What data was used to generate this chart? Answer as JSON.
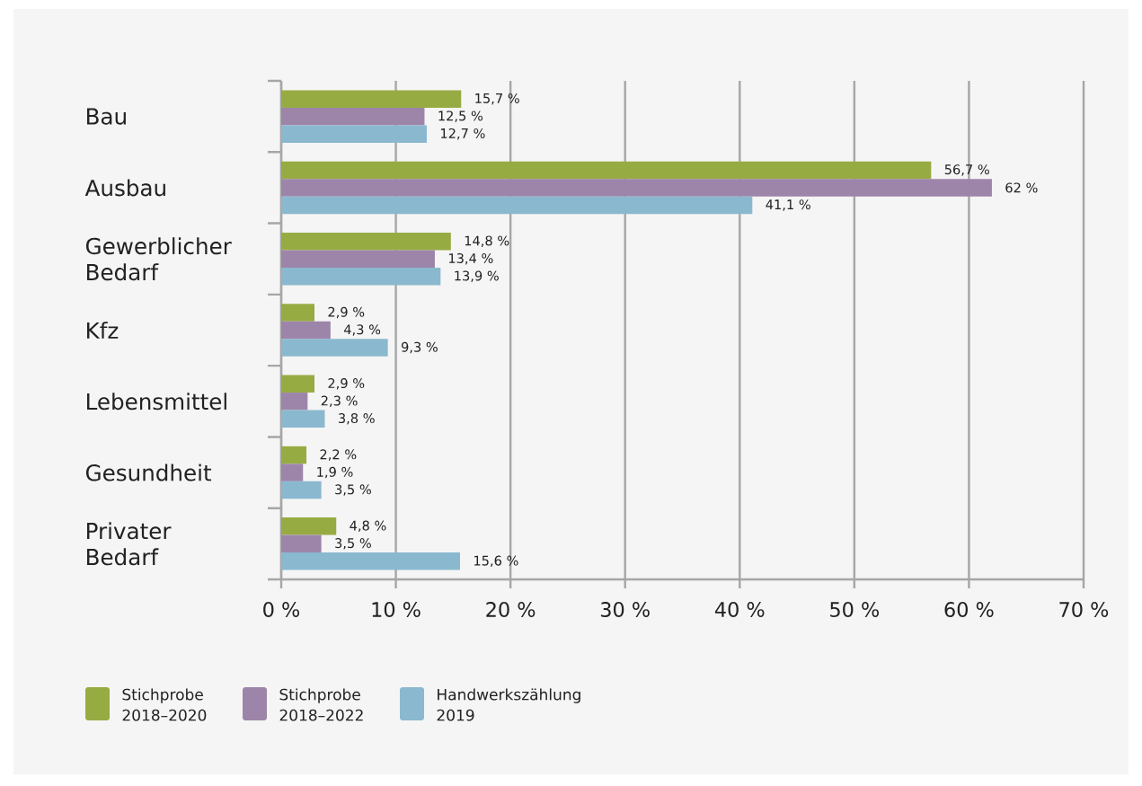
{
  "chart_data": {
    "type": "bar",
    "orientation": "horizontal",
    "categories": [
      "Bau",
      "Ausbau",
      "Gewerblicher Bedarf",
      "Kfz",
      "Lebensmittel",
      "Gesundheit",
      "Privater Bedarf"
    ],
    "series": [
      {
        "name": "Stichprobe 2018–2020",
        "color": "#97ab43",
        "values": [
          15.7,
          56.7,
          14.8,
          2.9,
          2.9,
          2.2,
          4.8
        ],
        "value_labels": [
          "15,7 %",
          "56,7 %",
          "14,8 %",
          "2,9 %",
          "2,9 %",
          "2,2 %",
          "4,8 %"
        ]
      },
      {
        "name": "Stichprobe 2018–2022",
        "color": "#9d85aa",
        "values": [
          12.5,
          62,
          13.4,
          4.3,
          2.3,
          1.9,
          3.5
        ],
        "value_labels": [
          "12,5 %",
          "62 %",
          "13,4 %",
          "4,3 %",
          "2,3 %",
          "1,9 %",
          "3,5 %"
        ]
      },
      {
        "name": "Handwerkszählung 2019",
        "color": "#8ab9cf",
        "values": [
          12.7,
          41.1,
          13.9,
          9.3,
          3.8,
          3.5,
          15.6
        ],
        "value_labels": [
          "12,7 %",
          "41,1 %",
          "13,9 %",
          "9,3 %",
          "3,8 %",
          "3,5 %",
          "15,6 %"
        ]
      }
    ],
    "xlim": [
      0,
      70
    ],
    "xticks": [
      {
        "value": 0,
        "label": "0 %"
      },
      {
        "value": 10,
        "label": "10 %"
      },
      {
        "value": 20,
        "label": "20 %"
      },
      {
        "value": 30,
        "label": "30 %"
      },
      {
        "value": 40,
        "label": "40 %"
      },
      {
        "value": 50,
        "label": "50 %"
      },
      {
        "value": 60,
        "label": "60 %"
      },
      {
        "value": 70,
        "label": "70 %"
      }
    ],
    "grid": "x",
    "legend": "bottom left"
  }
}
